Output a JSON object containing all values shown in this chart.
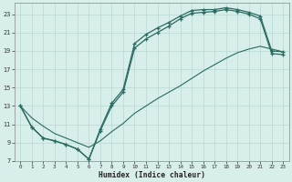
{
  "xlabel": "Humidex (Indice chaleur)",
  "bg_color": "#d8eeea",
  "line_color": "#2a6b62",
  "grid_color": "#b8d8d2",
  "xlim": [
    -0.5,
    23.5
  ],
  "ylim": [
    7,
    24.2
  ],
  "xticks": [
    0,
    1,
    2,
    3,
    4,
    5,
    6,
    7,
    8,
    9,
    10,
    11,
    12,
    13,
    14,
    15,
    16,
    17,
    18,
    19,
    20,
    21,
    22,
    23
  ],
  "yticks": [
    7,
    9,
    11,
    13,
    15,
    17,
    19,
    21,
    23
  ],
  "curve_upper_x": [
    0,
    1,
    2,
    3,
    4,
    5,
    6,
    7,
    8,
    9,
    10,
    11,
    12,
    13,
    14,
    15,
    16,
    17,
    18,
    19,
    20,
    21,
    22,
    23
  ],
  "curve_upper_y": [
    13,
    10.7,
    9.5,
    9.2,
    8.8,
    8.3,
    7.2,
    10.5,
    13.3,
    14.8,
    19.8,
    20.8,
    21.5,
    22.1,
    22.8,
    23.4,
    23.5,
    23.5,
    23.7,
    23.5,
    23.2,
    22.8,
    19.0,
    18.9
  ],
  "curve_lower_x": [
    0,
    1,
    2,
    3,
    4,
    5,
    6,
    7,
    8,
    9,
    10,
    11,
    12,
    13,
    14,
    15,
    16,
    17,
    18,
    19,
    20,
    21,
    22,
    23
  ],
  "curve_lower_y": [
    13,
    10.7,
    9.5,
    9.2,
    8.8,
    8.3,
    7.2,
    10.3,
    13.0,
    14.5,
    19.3,
    20.3,
    21.0,
    21.7,
    22.5,
    23.1,
    23.2,
    23.3,
    23.5,
    23.3,
    23.0,
    22.5,
    18.7,
    18.6
  ],
  "curve_diag_x": [
    0,
    1,
    2,
    3,
    4,
    5,
    6,
    7,
    8,
    9,
    10,
    11,
    12,
    13,
    14,
    15,
    16,
    17,
    18,
    19,
    20,
    21,
    22,
    23
  ],
  "curve_diag_y": [
    13,
    11.7,
    10.8,
    10.0,
    9.5,
    9.0,
    8.5,
    9.2,
    10.2,
    11.1,
    12.2,
    13.0,
    13.8,
    14.5,
    15.2,
    16.0,
    16.8,
    17.5,
    18.2,
    18.8,
    19.2,
    19.5,
    19.2,
    18.9
  ]
}
